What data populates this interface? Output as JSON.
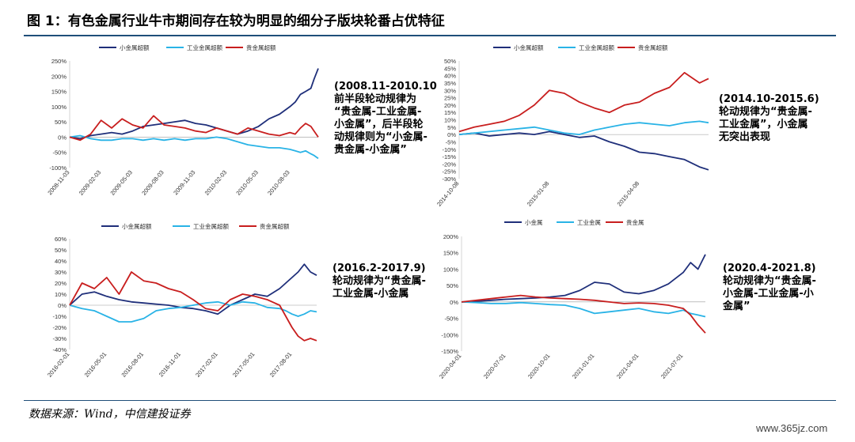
{
  "figure_title": "图 1：有色金属行业牛市期间存在较为明显的细分子版块轮番占优特征",
  "source": "数据来源：Wind，中信建投证券",
  "watermark": "www.365jz.com",
  "colors": {
    "small": "#1f2f7a",
    "industrial": "#29b3e6",
    "precious": "#c81e1e",
    "rule": "#1f4e79"
  },
  "annotations": [
    "(2008.11-2010.10\n前半段轮动规律为\n“贵金属-工业金属-\n小金属”，后半段轮\n动规律则为“小金属-\n贵金属-小金属”",
    "(2014.10-2015.6)\n轮动规律为“贵金属-\n工业金属”，小金属\n无突出表现",
    "(2016.2-2017.9)\n轮动规律为“贵金属-\n工业金属-小金属",
    "(2020.4-2021.8)\n轮动规律为“贵金属-\n小金属-工业金属-小\n金属”"
  ],
  "chart_data": [
    {
      "type": "line",
      "yformat": "percent",
      "ylim": [
        -100,
        250
      ],
      "yticks": [
        -100,
        -50,
        0,
        50,
        100,
        150,
        200,
        250
      ],
      "xticks": [
        "2008-11-03",
        "2009-02-03",
        "2009-05-03",
        "2009-08-03",
        "2009-11-03",
        "2010-02-03",
        "2010-05-03",
        "2010-08-03"
      ],
      "xlim": [
        0,
        23.7
      ],
      "x_ticks_at": [
        0,
        3,
        6,
        9,
        12,
        15,
        18,
        21
      ],
      "series": [
        {
          "name": "小金属超额",
          "x": [
            0,
            1,
            2,
            3,
            4,
            5,
            6,
            7,
            8,
            9,
            10,
            11,
            12,
            13,
            14,
            15,
            16,
            17,
            18,
            19,
            20,
            21,
            21.5,
            22,
            22.5,
            23,
            23.3,
            23.7
          ],
          "values": [
            0,
            -5,
            5,
            10,
            15,
            10,
            20,
            35,
            40,
            45,
            50,
            55,
            45,
            40,
            30,
            20,
            10,
            20,
            35,
            60,
            75,
            100,
            115,
            140,
            150,
            160,
            190,
            225
          ]
        },
        {
          "name": "工业金属超额",
          "x": [
            0,
            1,
            2,
            3,
            4,
            5,
            6,
            7,
            8,
            9,
            10,
            11,
            12,
            13,
            14,
            15,
            16,
            17,
            18,
            19,
            20,
            21,
            21.5,
            22,
            22.5,
            23,
            23.3,
            23.7
          ],
          "values": [
            0,
            5,
            -5,
            -10,
            -10,
            -5,
            -5,
            -10,
            -5,
            -10,
            -5,
            -10,
            -5,
            -5,
            0,
            -5,
            -15,
            -25,
            -30,
            -35,
            -35,
            -40,
            -45,
            -50,
            -45,
            -55,
            -60,
            -70
          ]
        },
        {
          "name": "贵金属超额",
          "x": [
            0,
            1,
            2,
            3,
            4,
            5,
            6,
            7,
            8,
            9,
            10,
            11,
            12,
            13,
            14,
            15,
            16,
            17,
            18,
            19,
            20,
            21,
            21.5,
            22,
            22.5,
            23,
            23.3,
            23.7
          ],
          "values": [
            0,
            -10,
            10,
            55,
            30,
            60,
            40,
            30,
            70,
            40,
            35,
            30,
            20,
            15,
            30,
            20,
            10,
            30,
            20,
            10,
            5,
            15,
            10,
            30,
            45,
            35,
            20,
            0
          ]
        }
      ]
    },
    {
      "type": "line",
      "yformat": "percent",
      "ylim": [
        -30,
        50
      ],
      "yticks": [
        -30,
        -25,
        -20,
        -15,
        -10,
        -5,
        0,
        5,
        10,
        15,
        20,
        25,
        30,
        35,
        40,
        45,
        50
      ],
      "xticks": [
        "2014-10-08",
        "2015-01-08",
        "2015-04-08"
      ],
      "xlim": [
        0,
        8.3
      ],
      "x_ticks_at": [
        0,
        3,
        6
      ],
      "series": [
        {
          "name": "小金属超额",
          "x": [
            0,
            0.5,
            1,
            1.5,
            2,
            2.5,
            3,
            3.5,
            4,
            4.5,
            5,
            5.5,
            6,
            6.5,
            7,
            7.5,
            8,
            8.3
          ],
          "values": [
            0,
            1,
            -1,
            0,
            1,
            0,
            2,
            0,
            -2,
            -1,
            -5,
            -8,
            -12,
            -13,
            -15,
            -17,
            -22,
            -24
          ]
        },
        {
          "name": "工业金属超额",
          "x": [
            0,
            0.5,
            1,
            1.5,
            2,
            2.5,
            3,
            3.5,
            4,
            4.5,
            5,
            5.5,
            6,
            6.5,
            7,
            7.5,
            8,
            8.3
          ],
          "values": [
            0,
            1,
            2,
            3,
            4,
            5,
            3,
            1,
            0,
            3,
            5,
            7,
            8,
            7,
            6,
            8,
            9,
            8
          ]
        },
        {
          "name": "贵金属超额",
          "x": [
            0,
            0.5,
            1,
            1.5,
            2,
            2.5,
            3,
            3.5,
            4,
            4.5,
            5,
            5.5,
            6,
            6.5,
            7,
            7.5,
            8,
            8.3
          ],
          "values": [
            2,
            5,
            7,
            9,
            13,
            20,
            30,
            28,
            22,
            18,
            15,
            20,
            22,
            28,
            32,
            42,
            35,
            38
          ]
        }
      ]
    },
    {
      "type": "line",
      "yformat": "percent",
      "ylim": [
        -40,
        60
      ],
      "yticks": [
        -40,
        -30,
        -20,
        -10,
        0,
        10,
        20,
        30,
        40,
        50,
        60
      ],
      "xticks": [
        "2016-02-01",
        "2016-05-01",
        "2016-08-01",
        "2016-11-01",
        "2017-02-01",
        "2017-05-01",
        "2017-08-01"
      ],
      "xlim": [
        0,
        20
      ],
      "x_ticks_at": [
        0,
        3,
        6,
        9,
        12,
        15,
        18
      ],
      "series": [
        {
          "name": "小金属超额",
          "x": [
            0,
            1,
            2,
            3,
            4,
            5,
            6,
            7,
            8,
            9,
            10,
            11,
            12,
            13,
            14,
            15,
            16,
            17,
            17.5,
            18,
            18.5,
            19,
            19.5,
            20
          ],
          "values": [
            0,
            10,
            12,
            8,
            5,
            3,
            2,
            1,
            0,
            -2,
            -3,
            -5,
            -8,
            0,
            5,
            10,
            8,
            15,
            20,
            25,
            30,
            37,
            30,
            27
          ]
        },
        {
          "name": "工业金属超额",
          "x": [
            0,
            1,
            2,
            3,
            4,
            5,
            6,
            7,
            8,
            9,
            10,
            11,
            12,
            13,
            14,
            15,
            16,
            17,
            17.5,
            18,
            18.5,
            19,
            19.5,
            20
          ],
          "values": [
            0,
            -3,
            -5,
            -10,
            -15,
            -15,
            -12,
            -5,
            -3,
            -2,
            0,
            2,
            3,
            0,
            3,
            2,
            -2,
            -3,
            -5,
            -8,
            -10,
            -8,
            -5,
            -6
          ]
        },
        {
          "name": "贵金属超额",
          "x": [
            0,
            1,
            2,
            3,
            4,
            5,
            6,
            7,
            8,
            9,
            10,
            11,
            12,
            13,
            14,
            15,
            16,
            17,
            17.5,
            18,
            18.5,
            19,
            19.5,
            20
          ],
          "values": [
            0,
            20,
            15,
            25,
            10,
            30,
            22,
            20,
            15,
            12,
            5,
            -3,
            -5,
            5,
            10,
            8,
            5,
            0,
            -10,
            -20,
            -28,
            -32,
            -30,
            -32
          ]
        }
      ]
    },
    {
      "type": "line",
      "yformat": "percent",
      "ylim": [
        -150,
        200
      ],
      "yticks": [
        -150,
        -100,
        -50,
        0,
        50,
        100,
        150,
        200
      ],
      "xticks": [
        "2020-04-01",
        "2020-07-01",
        "2020-10-01",
        "2021-01-01",
        "2021-04-01",
        "2021-07-01"
      ],
      "xlim": [
        0,
        16.5
      ],
      "x_ticks_at": [
        0,
        3,
        6,
        9,
        12,
        15
      ],
      "series": [
        {
          "name": "小金属",
          "x": [
            0,
            1,
            2,
            3,
            4,
            5,
            6,
            7,
            8,
            9,
            10,
            11,
            12,
            13,
            14,
            15,
            15.5,
            16,
            16.5
          ],
          "values": [
            0,
            2,
            5,
            8,
            10,
            12,
            15,
            20,
            35,
            60,
            55,
            30,
            25,
            35,
            55,
            90,
            120,
            100,
            145
          ]
        },
        {
          "name": "工业金属",
          "x": [
            0,
            1,
            2,
            3,
            4,
            5,
            6,
            7,
            8,
            9,
            10,
            11,
            12,
            13,
            14,
            15,
            15.5,
            16,
            16.5
          ],
          "values": [
            0,
            -2,
            -5,
            -5,
            -2,
            -5,
            -8,
            -10,
            -20,
            -35,
            -30,
            -25,
            -20,
            -30,
            -35,
            -25,
            -35,
            -40,
            -45
          ]
        },
        {
          "name": "贵金属",
          "x": [
            0,
            1,
            2,
            3,
            4,
            5,
            6,
            7,
            8,
            9,
            10,
            11,
            12,
            13,
            14,
            15,
            15.5,
            16,
            16.5
          ],
          "values": [
            0,
            5,
            10,
            15,
            20,
            15,
            12,
            10,
            8,
            5,
            0,
            -5,
            -3,
            -5,
            -10,
            -20,
            -40,
            -70,
            -95
          ]
        }
      ]
    }
  ]
}
